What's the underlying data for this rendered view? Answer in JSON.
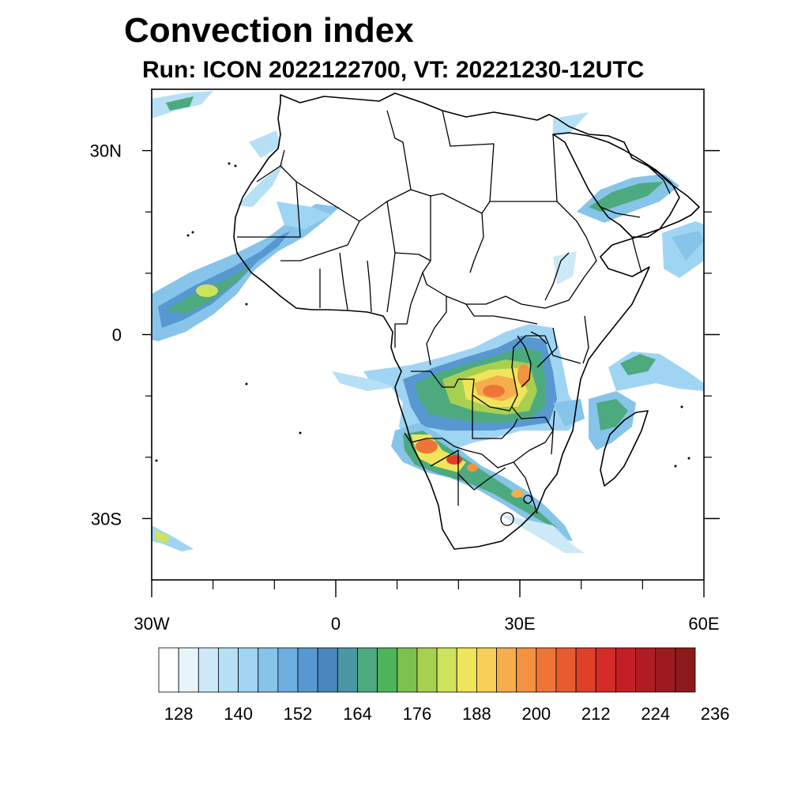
{
  "title": "Convection index",
  "subtitle": "Run: ICON 2022122700,  VT: 20221230-12UTC",
  "map": {
    "lon_range": [
      -30,
      60
    ],
    "lat_range": [
      -40,
      40
    ],
    "lat_tick_labels": [
      {
        "lat": 30,
        "label": "30N"
      },
      {
        "lat": 0,
        "label": "0"
      },
      {
        "lat": -30,
        "label": "30S"
      }
    ],
    "lon_tick_labels": [
      {
        "lon": -30,
        "label": "30W"
      },
      {
        "lon": 0,
        "label": "0"
      },
      {
        "lon": 30,
        "label": "30E"
      },
      {
        "lon": 60,
        "label": "60E"
      }
    ],
    "minor_lon_ticks": [
      -20,
      -10,
      10,
      20,
      40,
      50
    ],
    "minor_lat_ticks": [
      20,
      10,
      -10,
      -20
    ]
  },
  "colorbar": {
    "colors": [
      "#ffffff",
      "#e8f4fb",
      "#cde9f7",
      "#b5e0f5",
      "#9fd5f3",
      "#86c4ea",
      "#6daee0",
      "#5898d0",
      "#4a87bd",
      "#4b97a3",
      "#4caa7e",
      "#4eb45a",
      "#7cc14e",
      "#a8d050",
      "#cfe25b",
      "#efe55b",
      "#f8cf57",
      "#f6ad4c",
      "#f39240",
      "#ee7538",
      "#e85a30",
      "#e0402a",
      "#d52b29",
      "#c41f27",
      "#b01b24",
      "#9d1a20",
      "#8b1a1b"
    ],
    "labels": [
      "128",
      "140",
      "152",
      "164",
      "176",
      "188",
      "200",
      "212",
      "224",
      "236"
    ],
    "label_boxes": [
      2,
      5,
      8,
      11,
      14,
      17,
      20,
      23,
      26,
      29
    ]
  }
}
